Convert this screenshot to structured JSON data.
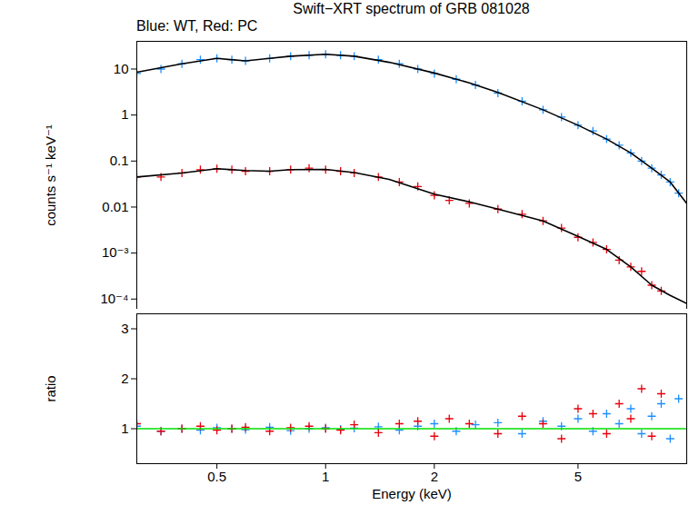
{
  "chart_data": [
    {
      "type": "scatter",
      "title": "Swift−XRT spectrum of GRB 081028",
      "subtitle": "Blue: WT, Red: PC",
      "ylabel": "counts s⁻¹ keV⁻¹",
      "log": true,
      "grid": false,
      "tick_labels": "y",
      "xlim": [
        0.3,
        10
      ],
      "xticks": [
        0.5,
        1,
        2,
        5
      ],
      "ylim": [
        6e-05,
        40
      ],
      "yticks": [
        10,
        1,
        0.1,
        0.01,
        {
          "value": 0.001,
          "label": "10⁻³"
        },
        {
          "value": 0.0001,
          "label": "10⁻⁴"
        }
      ],
      "series": [
        {
          "name": "WT",
          "type": "scatter",
          "marker": "plus",
          "color": "#1e8fff",
          "x": [
            0.3,
            0.35,
            0.4,
            0.45,
            0.5,
            0.55,
            0.6,
            0.7,
            0.8,
            0.9,
            1.0,
            1.1,
            1.2,
            1.4,
            1.6,
            1.8,
            2.0,
            2.3,
            2.6,
            3.0,
            3.5,
            4.0,
            4.5,
            5.0,
            5.5,
            6.0,
            6.5,
            7.0,
            7.5,
            8.0,
            8.5,
            9.0,
            9.5
          ],
          "values": [
            8,
            10,
            13,
            16,
            17,
            16,
            15,
            17,
            19,
            20,
            21,
            20,
            19,
            16,
            13,
            10,
            8,
            6,
            4.5,
            3,
            2,
            1.3,
            0.9,
            0.6,
            0.45,
            0.3,
            0.22,
            0.15,
            0.1,
            0.07,
            0.05,
            0.035,
            0.02
          ]
        },
        {
          "name": "PC",
          "type": "scatter",
          "marker": "plus",
          "color": "#e8000b",
          "x": [
            0.3,
            0.35,
            0.4,
            0.45,
            0.5,
            0.55,
            0.6,
            0.7,
            0.8,
            0.9,
            1.0,
            1.1,
            1.2,
            1.4,
            1.6,
            1.8,
            2.0,
            2.2,
            2.5,
            3.0,
            3.5,
            4.0,
            4.5,
            5.0,
            5.5,
            6.0,
            6.5,
            7.0,
            7.5,
            8.0,
            8.5
          ],
          "values": [
            0.045,
            0.045,
            0.055,
            0.065,
            0.068,
            0.065,
            0.06,
            0.06,
            0.065,
            0.07,
            0.065,
            0.06,
            0.055,
            0.045,
            0.035,
            0.028,
            0.018,
            0.014,
            0.012,
            0.009,
            0.007,
            0.005,
            0.0035,
            0.0022,
            0.0017,
            0.0012,
            0.0007,
            0.0005,
            0.0004,
            0.0002,
            0.00015
          ]
        },
        {
          "type": "line",
          "line_style": "solid",
          "color": "#000000",
          "x": [
            0.3,
            0.4,
            0.5,
            0.6,
            0.7,
            0.8,
            1.0,
            1.2,
            1.5,
            2.0,
            2.5,
            3.0,
            4.0,
            5.0,
            6.0,
            7.0,
            8.0,
            9.0,
            10
          ],
          "values": [
            8.5,
            13,
            17,
            15,
            17,
            19,
            21,
            19,
            14,
            8.2,
            5,
            3.1,
            1.3,
            0.6,
            0.3,
            0.15,
            0.07,
            0.035,
            0.012
          ]
        },
        {
          "type": "line",
          "line_style": "solid",
          "color": "#000000",
          "x": [
            0.3,
            0.4,
            0.5,
            0.6,
            0.7,
            0.8,
            1.0,
            1.2,
            1.5,
            2.0,
            2.5,
            3.0,
            4.0,
            5.0,
            6.0,
            7.0,
            8.0,
            9.0,
            10
          ],
          "values": [
            0.045,
            0.055,
            0.068,
            0.062,
            0.06,
            0.065,
            0.066,
            0.056,
            0.04,
            0.019,
            0.013,
            0.009,
            0.005,
            0.0023,
            0.0012,
            0.0005,
            0.0002,
            0.00012,
            8e-05
          ]
        }
      ]
    },
    {
      "type": "scatter",
      "xlabel": "Energy (keV)",
      "ylabel": "ratio",
      "log": "x",
      "grid": false,
      "xlim": [
        0.3,
        10
      ],
      "xticks": [
        0.5,
        1,
        2,
        5
      ],
      "ylim": [
        0.3,
        3.3
      ],
      "yticks": [
        1,
        2,
        3
      ],
      "series": [
        {
          "name": "WT",
          "type": "scatter",
          "marker": "plus",
          "color": "#1e8fff",
          "x": [
            0.3,
            0.35,
            0.4,
            0.45,
            0.5,
            0.55,
            0.6,
            0.7,
            0.8,
            0.9,
            1.0,
            1.1,
            1.2,
            1.4,
            1.6,
            1.8,
            2.0,
            2.3,
            2.6,
            3.0,
            3.5,
            4.0,
            4.5,
            5.0,
            5.5,
            6.0,
            6.5,
            7.0,
            7.5,
            8.0,
            8.5,
            9.0,
            9.5
          ],
          "values": [
            1.05,
            0.95,
            1.0,
            0.97,
            1.02,
            1.0,
            0.98,
            1.03,
            0.96,
            1.0,
            1.02,
            0.99,
            1.01,
            1.04,
            0.97,
            1.05,
            1.1,
            0.95,
            1.08,
            1.12,
            0.9,
            1.15,
            1.05,
            1.2,
            0.95,
            1.3,
            1.1,
            1.4,
            0.9,
            1.25,
            1.5,
            0.8,
            1.6
          ]
        },
        {
          "name": "PC",
          "type": "scatter",
          "marker": "plus",
          "color": "#e8000b",
          "x": [
            0.3,
            0.35,
            0.4,
            0.45,
            0.5,
            0.55,
            0.6,
            0.7,
            0.8,
            0.9,
            1.0,
            1.1,
            1.2,
            1.4,
            1.6,
            1.8,
            2.0,
            2.2,
            2.5,
            3.0,
            3.5,
            4.0,
            4.5,
            5.0,
            5.5,
            6.0,
            6.5,
            7.0,
            7.5,
            8.0,
            8.5
          ],
          "values": [
            1.1,
            0.95,
            1.0,
            1.05,
            0.97,
            1.0,
            1.03,
            0.95,
            1.02,
            1.05,
            1.0,
            0.97,
            1.08,
            0.92,
            1.1,
            1.15,
            0.85,
            1.2,
            1.1,
            0.9,
            1.25,
            1.1,
            0.8,
            1.4,
            1.3,
            0.9,
            1.5,
            1.2,
            1.8,
            0.85,
            1.7
          ]
        },
        {
          "type": "line",
          "line_style": "solid",
          "color": "#00e000",
          "x": [
            0.3,
            10
          ],
          "values": [
            1,
            1
          ]
        }
      ]
    }
  ]
}
